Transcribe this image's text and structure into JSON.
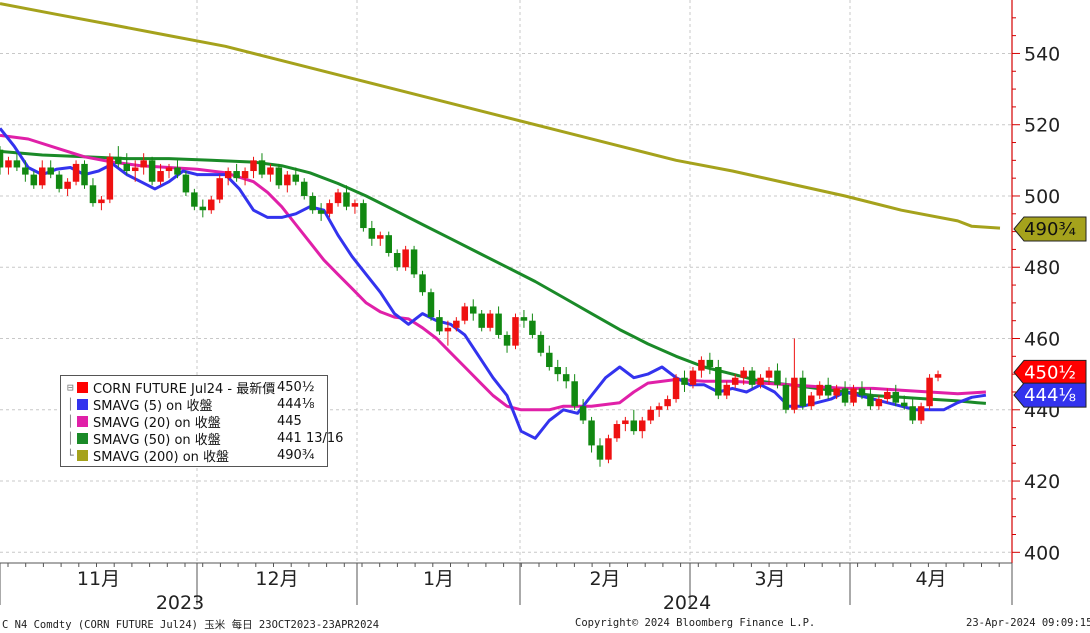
{
  "chart_data": {
    "type": "candlestick",
    "y_ticks": [
      "540",
      "520",
      "500",
      "480",
      "460",
      "440",
      "420",
      "400"
    ],
    "ylim": [
      397,
      555
    ],
    "x_months": [
      "11月",
      "12月",
      "1月",
      "2月",
      "3月",
      "4月"
    ],
    "x_years": [
      "2023",
      "2024"
    ],
    "last_price_tags": [
      {
        "label": "490¾",
        "series": "SMAVG (200)",
        "value": 490.75,
        "color": "#a5a21c"
      },
      {
        "label": "450½",
        "series": "CORN FUTURE Jul24",
        "value": 450.5,
        "color": "#ff0000"
      },
      {
        "label": "444⅛",
        "series": "SMAVG (5)",
        "value": 444.125,
        "color": "#3333ee"
      }
    ],
    "legend": [
      {
        "tree": "⊟",
        "name": "CORN FUTURE Jul24 - 最新價",
        "value": "450½",
        "color": "#ff0000"
      },
      {
        "tree": "│",
        "name": "SMAVG (5)  on 收盤",
        "value": "444⅛",
        "color": "#3333ee"
      },
      {
        "tree": "│",
        "name": "SMAVG (20)  on 收盤",
        "value": "445",
        "color": "#e020a8"
      },
      {
        "tree": "│",
        "name": "SMAVG (50)  on 收盤",
        "value": "441 13/16",
        "color": "#1a8a28"
      },
      {
        "tree": "└",
        "name": "SMAVG (200)  on 收盤",
        "value": "490¾",
        "color": "#a5a21c"
      }
    ],
    "sma200": [
      [
        0,
        554
      ],
      [
        20,
        551
      ],
      [
        40,
        548
      ],
      [
        60,
        545
      ],
      [
        80,
        542
      ],
      [
        100,
        538
      ],
      [
        120,
        534
      ],
      [
        140,
        530
      ],
      [
        160,
        526
      ],
      [
        180,
        522
      ],
      [
        200,
        518
      ],
      [
        220,
        514
      ],
      [
        240,
        510
      ],
      [
        260,
        507
      ],
      [
        280,
        503.5
      ],
      [
        300,
        500
      ],
      [
        320,
        496
      ],
      [
        340,
        493
      ],
      [
        345,
        491.5
      ],
      [
        355,
        491
      ]
    ],
    "sma50": [
      [
        0,
        512.5
      ],
      [
        15,
        511.5
      ],
      [
        30,
        511
      ],
      [
        45,
        510.5
      ],
      [
        60,
        510.5
      ],
      [
        75,
        510
      ],
      [
        90,
        509.5
      ],
      [
        100,
        508.5
      ],
      [
        110,
        506.5
      ],
      [
        120,
        503.5
      ],
      [
        130,
        500
      ],
      [
        140,
        496
      ],
      [
        150,
        492
      ],
      [
        160,
        488
      ],
      [
        170,
        484
      ],
      [
        180,
        480
      ],
      [
        190,
        476
      ],
      [
        200,
        471.5
      ],
      [
        210,
        467
      ],
      [
        220,
        462.5
      ],
      [
        230,
        458.5
      ],
      [
        240,
        455
      ],
      [
        250,
        452
      ],
      [
        260,
        450
      ],
      [
        270,
        448
      ],
      [
        280,
        447
      ],
      [
        290,
        446
      ],
      [
        300,
        445
      ],
      [
        310,
        444
      ],
      [
        320,
        443.5
      ],
      [
        330,
        443
      ],
      [
        340,
        442.5
      ],
      [
        347,
        442
      ],
      [
        350,
        441.8
      ]
    ],
    "sma20": [
      [
        0,
        517
      ],
      [
        10,
        516
      ],
      [
        20,
        513.5
      ],
      [
        30,
        511
      ],
      [
        40,
        509.5
      ],
      [
        50,
        508.5
      ],
      [
        60,
        508
      ],
      [
        70,
        507.5
      ],
      [
        80,
        506.5
      ],
      [
        90,
        504
      ],
      [
        95,
        501
      ],
      [
        100,
        497
      ],
      [
        105,
        492
      ],
      [
        110,
        487
      ],
      [
        115,
        482
      ],
      [
        120,
        478
      ],
      [
        125,
        474
      ],
      [
        130,
        470
      ],
      [
        135,
        467.5
      ],
      [
        140,
        466
      ],
      [
        145,
        465.5
      ],
      [
        150,
        463
      ],
      [
        155,
        460
      ],
      [
        160,
        456
      ],
      [
        165,
        452
      ],
      [
        170,
        448
      ],
      [
        175,
        444
      ],
      [
        180,
        441
      ],
      [
        185,
        440
      ],
      [
        190,
        440
      ],
      [
        195,
        440
      ],
      [
        200,
        441
      ],
      [
        210,
        441
      ],
      [
        220,
        442
      ],
      [
        225,
        445
      ],
      [
        230,
        447.5
      ],
      [
        240,
        448.5
      ],
      [
        250,
        448
      ],
      [
        260,
        448
      ],
      [
        270,
        447.5
      ],
      [
        280,
        447
      ],
      [
        290,
        446.5
      ],
      [
        300,
        446
      ],
      [
        310,
        446
      ],
      [
        320,
        445.5
      ],
      [
        330,
        445
      ],
      [
        340,
        444.5
      ],
      [
        350,
        445
      ]
    ],
    "sma5": [
      [
        0,
        519
      ],
      [
        5,
        514
      ],
      [
        10,
        508
      ],
      [
        15,
        506
      ],
      [
        20,
        507.5
      ],
      [
        25,
        508
      ],
      [
        30,
        506
      ],
      [
        35,
        507
      ],
      [
        40,
        509
      ],
      [
        45,
        506
      ],
      [
        50,
        504
      ],
      [
        55,
        502
      ],
      [
        60,
        504
      ],
      [
        65,
        507
      ],
      [
        70,
        506
      ],
      [
        75,
        506
      ],
      [
        80,
        506
      ],
      [
        85,
        502
      ],
      [
        90,
        496
      ],
      [
        95,
        494
      ],
      [
        100,
        494
      ],
      [
        105,
        495
      ],
      [
        110,
        497
      ],
      [
        115,
        496
      ],
      [
        120,
        489
      ],
      [
        125,
        483
      ],
      [
        130,
        478
      ],
      [
        135,
        473
      ],
      [
        140,
        467
      ],
      [
        145,
        464
      ],
      [
        150,
        467
      ],
      [
        155,
        465
      ],
      [
        160,
        464
      ],
      [
        165,
        461
      ],
      [
        170,
        455
      ],
      [
        175,
        449
      ],
      [
        180,
        444
      ],
      [
        185,
        434
      ],
      [
        190,
        432
      ],
      [
        195,
        437
      ],
      [
        200,
        440
      ],
      [
        205,
        439
      ],
      [
        210,
        444
      ],
      [
        215,
        449
      ],
      [
        220,
        452
      ],
      [
        225,
        449
      ],
      [
        230,
        450
      ],
      [
        235,
        452
      ],
      [
        240,
        449
      ],
      [
        245,
        447
      ],
      [
        250,
        447
      ],
      [
        255,
        445
      ],
      [
        260,
        446
      ],
      [
        265,
        445
      ],
      [
        270,
        447
      ],
      [
        275,
        445
      ],
      [
        280,
        441
      ],
      [
        285,
        441
      ],
      [
        290,
        442
      ],
      [
        295,
        443
      ],
      [
        300,
        445
      ],
      [
        305,
        444
      ],
      [
        310,
        443
      ],
      [
        315,
        442
      ],
      [
        320,
        441
      ],
      [
        325,
        440
      ],
      [
        330,
        440
      ],
      [
        335,
        440
      ],
      [
        340,
        442
      ],
      [
        345,
        443.5
      ],
      [
        350,
        444.1
      ]
    ],
    "candles_ohlc": [
      [
        0,
        513,
        514,
        506,
        508
      ],
      [
        3,
        508,
        511,
        506,
        510
      ],
      [
        6,
        510,
        512,
        507,
        508
      ],
      [
        9,
        508,
        510,
        504,
        506
      ],
      [
        12,
        506,
        507,
        502,
        503
      ],
      [
        15,
        503,
        510,
        502,
        508
      ],
      [
        18,
        508,
        510,
        505,
        506
      ],
      [
        21,
        506,
        507,
        501,
        502
      ],
      [
        24,
        502,
        505,
        500,
        504
      ],
      [
        27,
        504,
        510,
        503,
        509
      ],
      [
        30,
        509,
        510,
        502,
        503
      ],
      [
        33,
        503,
        505,
        497,
        498
      ],
      [
        36,
        498,
        500,
        496,
        499
      ],
      [
        39,
        499,
        512,
        498,
        511
      ],
      [
        42,
        511,
        514,
        508,
        509
      ],
      [
        45,
        509,
        512,
        506,
        507
      ],
      [
        48,
        507,
        510,
        504,
        508
      ],
      [
        51,
        508,
        512,
        506,
        510
      ],
      [
        54,
        510,
        511,
        503,
        504
      ],
      [
        57,
        504,
        509,
        503,
        507
      ],
      [
        60,
        507,
        509,
        505,
        508
      ],
      [
        63,
        508,
        510,
        505,
        506
      ],
      [
        66,
        506,
        507,
        500,
        501
      ],
      [
        69,
        501,
        502,
        496,
        497
      ],
      [
        72,
        497,
        499,
        494,
        496
      ],
      [
        75,
        496,
        500,
        495,
        499
      ],
      [
        78,
        499,
        506,
        498,
        505
      ],
      [
        81,
        505,
        508,
        503,
        507
      ],
      [
        84,
        507,
        509,
        504,
        505
      ],
      [
        87,
        505,
        508,
        503,
        507
      ],
      [
        90,
        507,
        511,
        505,
        510
      ],
      [
        93,
        510,
        512,
        505,
        506
      ],
      [
        96,
        506,
        509,
        504,
        508
      ],
      [
        99,
        508,
        509,
        502,
        503
      ],
      [
        102,
        503,
        507,
        501,
        506
      ],
      [
        105,
        506,
        508,
        503,
        504
      ],
      [
        108,
        504,
        505,
        499,
        500
      ],
      [
        111,
        500,
        501,
        495,
        496
      ],
      [
        114,
        496,
        498,
        493,
        495
      ],
      [
        117,
        495,
        499,
        494,
        498
      ],
      [
        120,
        498,
        502,
        497,
        501
      ],
      [
        123,
        501,
        503,
        496,
        497
      ],
      [
        126,
        497,
        499,
        495,
        498
      ],
      [
        129,
        498,
        499,
        490,
        491
      ],
      [
        132,
        491,
        493,
        486,
        488
      ],
      [
        135,
        488,
        490,
        486,
        489
      ],
      [
        138,
        489,
        490,
        483,
        484
      ],
      [
        141,
        484,
        485,
        479,
        480
      ],
      [
        144,
        480,
        486,
        479,
        485
      ],
      [
        147,
        485,
        486,
        477,
        478
      ],
      [
        150,
        478,
        479,
        472,
        473
      ],
      [
        153,
        473,
        474,
        465,
        466
      ],
      [
        156,
        466,
        468,
        461,
        462
      ],
      [
        159,
        462,
        465,
        458,
        463
      ],
      [
        162,
        463,
        466,
        462,
        465
      ],
      [
        165,
        465,
        470,
        464,
        469
      ],
      [
        168,
        469,
        471,
        465,
        467
      ],
      [
        171,
        467,
        468,
        462,
        463
      ],
      [
        174,
        463,
        468,
        462,
        467
      ],
      [
        177,
        467,
        469,
        460,
        461
      ],
      [
        180,
        461,
        462,
        456,
        458
      ],
      [
        183,
        458,
        467,
        457,
        466
      ],
      [
        186,
        466,
        468,
        463,
        465
      ],
      [
        189,
        465,
        467,
        460,
        461
      ],
      [
        192,
        461,
        462,
        455,
        456
      ],
      [
        195,
        456,
        458,
        451,
        452
      ],
      [
        198,
        452,
        454,
        448,
        450
      ],
      [
        201,
        450,
        452,
        446,
        448
      ],
      [
        204,
        448,
        450,
        440,
        441
      ],
      [
        207,
        441,
        443,
        436,
        437
      ],
      [
        210,
        437,
        438,
        428,
        430
      ],
      [
        213,
        430,
        432,
        424,
        426
      ],
      [
        216,
        426,
        433,
        425,
        432
      ],
      [
        219,
        432,
        437,
        431,
        436
      ],
      [
        222,
        436,
        438,
        434,
        437
      ],
      [
        225,
        437,
        440,
        433,
        434
      ],
      [
        228,
        434,
        438,
        432,
        437
      ],
      [
        231,
        437,
        441,
        436,
        440
      ],
      [
        234,
        440,
        442,
        438,
        441
      ],
      [
        237,
        441,
        444,
        440,
        443
      ],
      [
        240,
        443,
        450,
        442,
        449
      ],
      [
        243,
        449,
        451,
        445,
        447
      ],
      [
        246,
        447,
        452,
        446,
        451
      ],
      [
        249,
        451,
        455,
        449,
        454
      ],
      [
        252,
        454,
        456,
        450,
        452
      ],
      [
        255,
        452,
        454,
        443,
        444
      ],
      [
        258,
        444,
        448,
        443,
        447
      ],
      [
        261,
        447,
        450,
        446,
        449
      ],
      [
        264,
        449,
        452,
        447,
        451
      ],
      [
        267,
        451,
        452,
        446,
        447
      ],
      [
        270,
        447,
        450,
        446,
        449
      ],
      [
        273,
        449,
        452,
        447,
        451
      ],
      [
        276,
        451,
        453,
        446,
        447
      ],
      [
        279,
        447,
        449,
        439,
        440
      ],
      [
        282,
        440,
        460,
        439,
        449
      ],
      [
        285,
        449,
        451,
        440,
        441
      ],
      [
        288,
        441,
        445,
        440,
        444
      ],
      [
        291,
        444,
        448,
        443,
        447
      ],
      [
        294,
        447,
        449,
        443,
        444
      ],
      [
        297,
        444,
        447,
        443,
        446
      ],
      [
        300,
        446,
        448,
        441,
        442
      ],
      [
        303,
        442,
        447,
        441,
        446
      ],
      [
        306,
        446,
        448,
        443,
        444
      ],
      [
        309,
        444,
        446,
        440,
        441
      ],
      [
        312,
        441,
        444,
        440,
        443
      ],
      [
        315,
        443,
        446,
        442,
        445
      ],
      [
        318,
        445,
        447,
        441,
        442
      ],
      [
        321,
        442,
        444,
        440,
        441
      ],
      [
        324,
        441,
        443,
        436,
        437
      ],
      [
        327,
        437,
        442,
        436,
        441
      ],
      [
        330,
        441,
        450,
        440,
        449
      ],
      [
        333,
        449,
        451,
        448,
        450
      ]
    ]
  },
  "footer": {
    "left": "C N4 Comdty (CORN FUTURE       Jul24) 玉米  每日 23OCT2023-23APR2024",
    "center": "Copyright© 2024 Bloomberg Finance L.P.",
    "right": "23-Apr-2024 09:09:15"
  }
}
